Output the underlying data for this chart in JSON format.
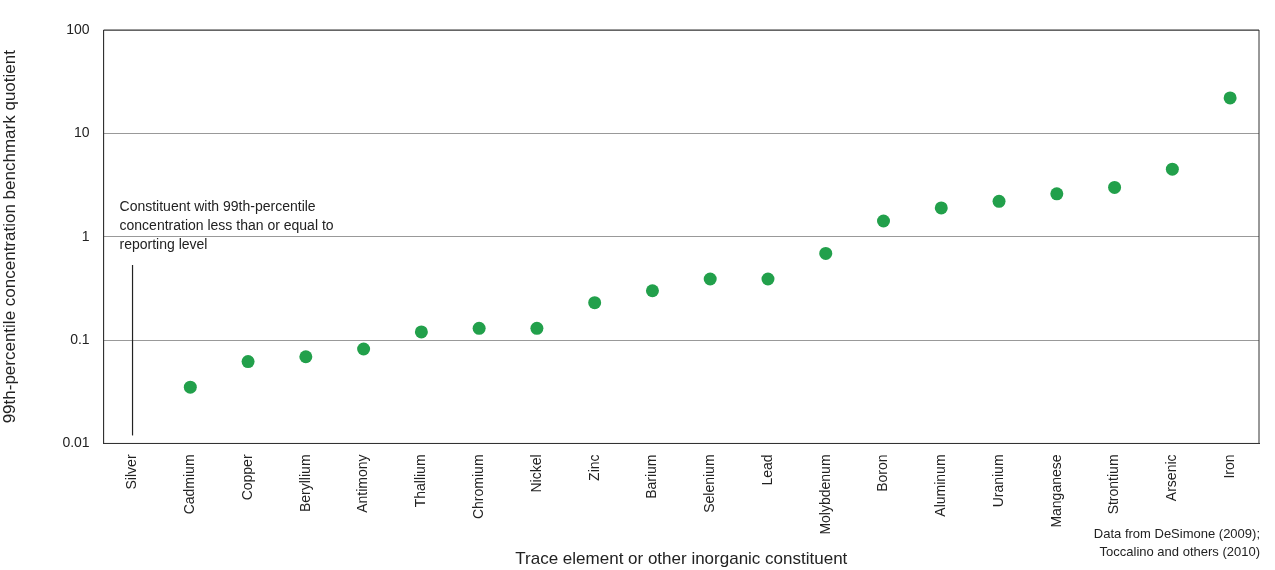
{
  "chart_data": {
    "type": "scatter",
    "xlabel": "Trace element or other inorganic constituent",
    "ylabel": "99th-percentile concentration benchmark quotient",
    "categories": [
      "Silver",
      "Cadmium",
      "Copper",
      "Beryllium",
      "Antimony",
      "Thallium",
      "Chromium",
      "Nickel",
      "Zinc",
      "Barium",
      "Selenium",
      "Lead",
      "Molybdenum",
      "Boron",
      "Aluminum",
      "Uranium",
      "Manganese",
      "Strontium",
      "Arsenic",
      "Iron"
    ],
    "series": [
      {
        "color": "#22a04b",
        "values": [
          null,
          0.035,
          0.062,
          0.069,
          0.082,
          0.12,
          0.13,
          0.13,
          0.23,
          0.3,
          0.39,
          0.39,
          0.69,
          1.42,
          1.9,
          2.2,
          2.6,
          3.0,
          4.5,
          22
        ]
      }
    ],
    "log": "y",
    "ylim": [
      0.01,
      100
    ],
    "yticks": [
      0.01,
      0.1,
      1,
      10,
      100
    ],
    "grid": "y",
    "legend": false,
    "marker": "circle",
    "annotations": [
      "Constituent with 99th-percentile concentration less than or equal to reporting level",
      "Data from DeSimone (2009); Toccalino and others (2010)"
    ]
  }
}
